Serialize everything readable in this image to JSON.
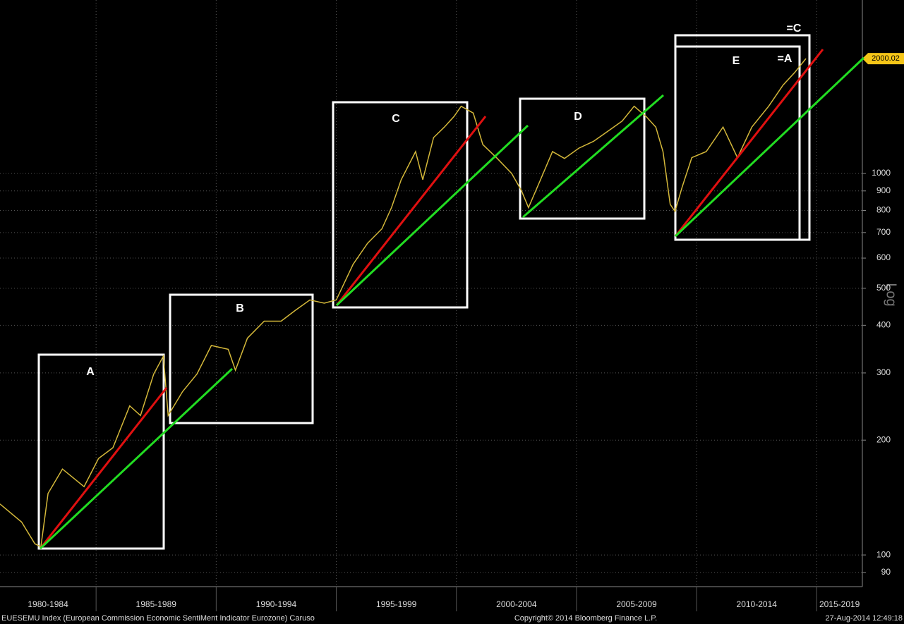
{
  "chart_data": {
    "type": "line",
    "log_y": true,
    "y_scale_label": "Log",
    "grid": true,
    "x": [
      1981.0,
      1981.9,
      1982.45,
      1982.7,
      1983.0,
      1983.6,
      1984.5,
      1985.1,
      1985.7,
      1986.4,
      1986.85,
      1987.4,
      1987.8,
      1988.0,
      1988.6,
      1989.2,
      1989.8,
      1990.5,
      1990.8,
      1991.3,
      1992.0,
      1992.7,
      1993.3,
      1993.9,
      1994.5,
      1995.0,
      1995.7,
      1996.3,
      1996.9,
      1997.3,
      1997.7,
      1998.3,
      1998.6,
      1999.05,
      1999.5,
      1999.9,
      2000.2,
      2000.7,
      2001.1,
      2001.7,
      2002.3,
      2002.7,
      2003.0,
      2003.5,
      2004.0,
      2004.5,
      2005.1,
      2005.7,
      2006.3,
      2006.9,
      2007.4,
      2007.9,
      2008.3,
      2008.6,
      2008.9,
      2009.1,
      2009.4,
      2009.8,
      2010.4,
      2011.1,
      2011.7,
      2012.3,
      2013.0,
      2013.6,
      2014.1,
      2014.55
    ],
    "series": [
      {
        "name": "EUESEMU Index",
        "color": "#d4b83a",
        "values": [
          136,
          122,
          107,
          105,
          145,
          168,
          151,
          179,
          191,
          246,
          232,
          298,
          332,
          232,
          268,
          298,
          354,
          346,
          305,
          370,
          410,
          410,
          438,
          466,
          457,
          466,
          578,
          656,
          716,
          814,
          963,
          1141,
          963,
          1242,
          1323,
          1410,
          1500,
          1440,
          1190,
          1095,
          1000,
          904,
          814,
          963,
          1141,
          1095,
          1165,
          1213,
          1290,
          1372,
          1500,
          1410,
          1323,
          1141,
          830,
          795,
          922,
          1100,
          1141,
          1323,
          1100,
          1323,
          1500,
          1705,
          1845,
          2000.02
        ]
      }
    ],
    "xlim": [
      1981.0,
      2016.9
    ],
    "xticks": [
      {
        "value": 1980,
        "label": "1980-1984"
      },
      {
        "value": 1985,
        "label": "1985-1989"
      },
      {
        "value": 1990,
        "label": "1990-1994"
      },
      {
        "value": 1995,
        "label": "1995-1999"
      },
      {
        "value": 2000,
        "label": "2000-2004"
      },
      {
        "value": 2005,
        "label": "2005-2009"
      },
      {
        "value": 2010,
        "label": "2010-2014"
      },
      {
        "value": 2015,
        "label": "2015-2019"
      }
    ],
    "ylim": [
      82.6,
      2849
    ],
    "yticks": [
      90,
      100,
      200,
      300,
      400,
      500,
      600,
      700,
      800,
      900,
      1000
    ],
    "annotations": [
      "A",
      "B",
      "C",
      "D",
      "E",
      "=A",
      "=C"
    ],
    "footer": {
      "left": "EUESEMU Index (European Commission Economic SentiMent Indicator Eurozone) Caruso",
      "center": "Copyright© 2014 Bloomberg Finance L.P.",
      "right": "27-Aug-2014 12:49:18"
    }
  }
}
